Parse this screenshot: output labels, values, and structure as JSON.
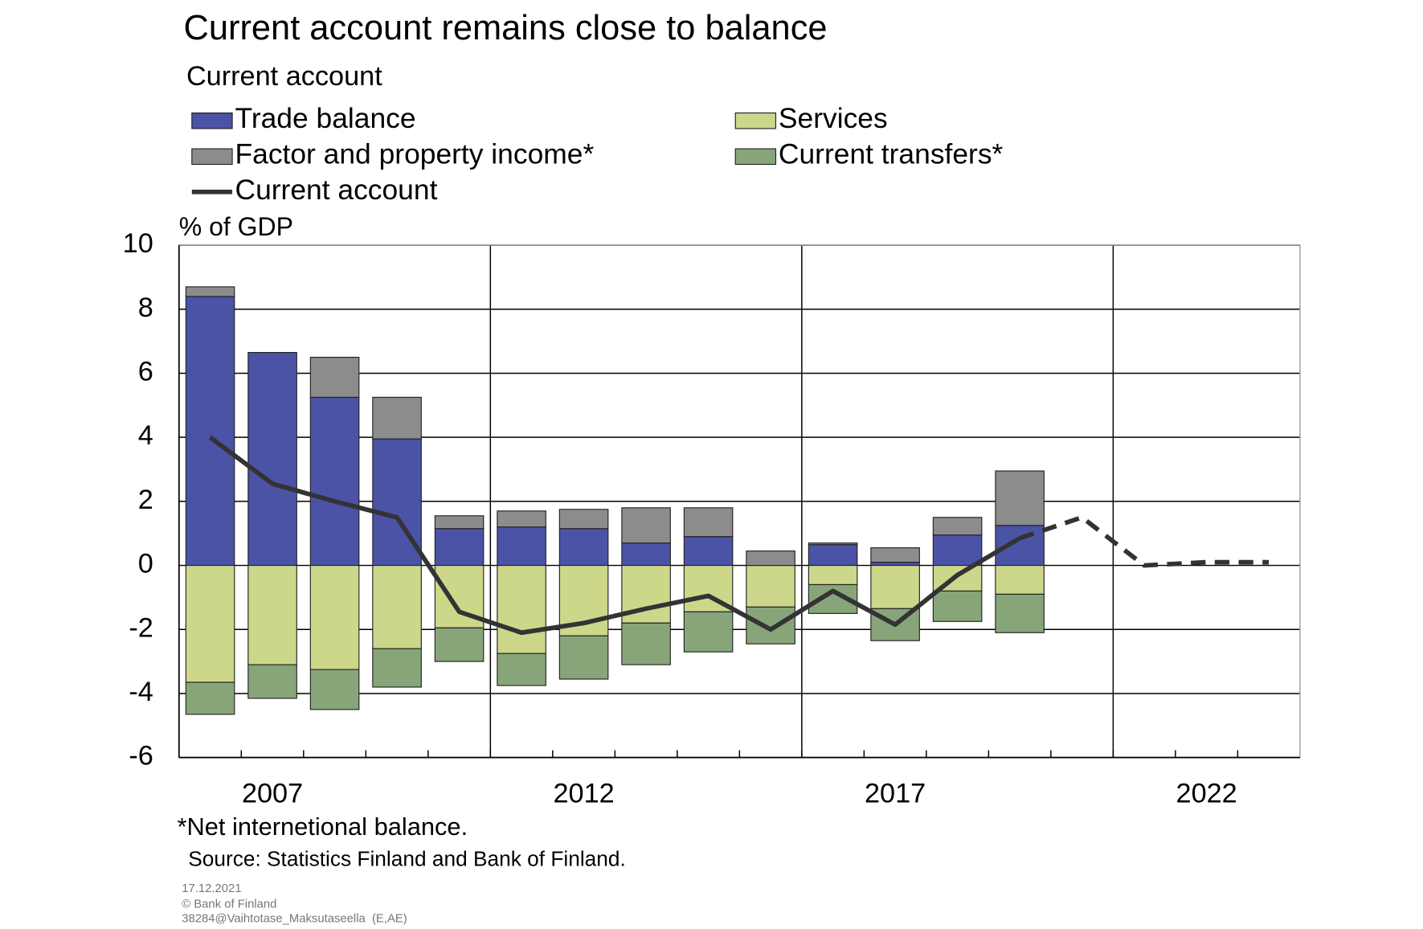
{
  "chart_data": {
    "type": "bar",
    "title": "Current account remains close to balance",
    "subtitle": "Current account",
    "y_label": "% of GDP",
    "footnote": "*Net internetional balance.",
    "source": "Source: Statistics Finland and Bank of Finland.",
    "date": "17.12.2021",
    "copyright": "© Bank of Finland",
    "file_id": "38284@Vaihtotase_Maksutaseella  (E,AE)",
    "x": [
      2006,
      2007,
      2008,
      2009,
      2010,
      2011,
      2012,
      2013,
      2014,
      2015,
      2016,
      2017,
      2018,
      2019,
      2020,
      2021,
      2022,
      2023
    ],
    "xlim": [
      2005.5,
      2023.5
    ],
    "xticks": [
      2007,
      2012,
      2017,
      2022
    ],
    "xgrid": [
      2010.5,
      2015.5,
      2020.5
    ],
    "ylim": [
      -6,
      10
    ],
    "yticks": [
      -6,
      -4,
      -2,
      0,
      2,
      4,
      6,
      8,
      10
    ],
    "grid": true,
    "dashed_from_x": 2019,
    "series": [
      {
        "name": "Trade balance",
        "color": "#4b53a6",
        "values": [
          8.4,
          6.65,
          5.25,
          3.95,
          1.15,
          1.2,
          1.15,
          0.7,
          0.9,
          0,
          0.65,
          0.1,
          0.95,
          1.25,
          null,
          null,
          null,
          null
        ]
      },
      {
        "name": "Services",
        "color": "#cdd78a",
        "values": [
          -3.65,
          -3.1,
          -3.25,
          -2.6,
          -1.95,
          -2.75,
          -2.2,
          -1.8,
          -1.45,
          -1.3,
          -0.6,
          -1.35,
          -0.8,
          -0.9,
          null,
          null,
          null,
          null
        ]
      },
      {
        "name": "Factor and property income*",
        "color": "#8c8c8c",
        "values": [
          0.3,
          0,
          1.25,
          1.3,
          0.4,
          0.5,
          0.6,
          1.1,
          0.9,
          0.45,
          0.05,
          0.45,
          0.55,
          1.7,
          null,
          null,
          null,
          null
        ]
      },
      {
        "name": "Current transfers*",
        "color": "#88a57a",
        "values": [
          -1.0,
          -1.05,
          -1.25,
          -1.2,
          -1.05,
          -1.0,
          -1.35,
          -1.3,
          -1.25,
          -1.15,
          -0.9,
          -1.0,
          -0.95,
          -1.2,
          null,
          null,
          null,
          null
        ]
      },
      {
        "name": "Current account",
        "type": "line",
        "color": "#333333",
        "values": [
          4.0,
          2.55,
          2.0,
          1.5,
          -1.45,
          -2.1,
          -1.8,
          -1.35,
          -0.95,
          -2.0,
          -0.8,
          -1.85,
          -0.3,
          0.85,
          1.5,
          0.0,
          0.1,
          0.1
        ]
      }
    ]
  }
}
